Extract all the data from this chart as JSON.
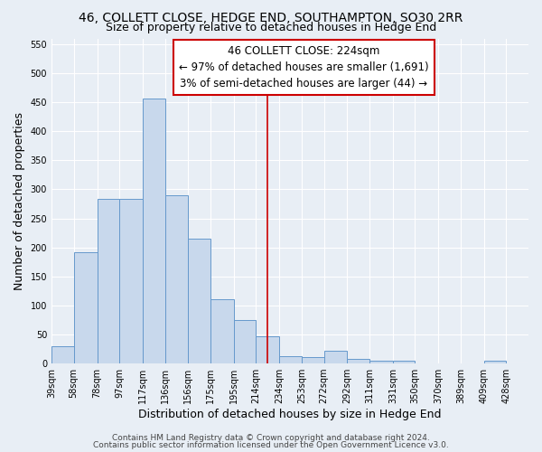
{
  "title1": "46, COLLETT CLOSE, HEDGE END, SOUTHAMPTON, SO30 2RR",
  "title2": "Size of property relative to detached houses in Hedge End",
  "xlabel": "Distribution of detached houses by size in Hedge End",
  "ylabel": "Number of detached properties",
  "background_color": "#e8eef5",
  "bar_color": "#c8d8ec",
  "bar_edge_color": "#6699cc",
  "vline_color": "#cc0000",
  "vline_value": 224,
  "annotation_text": "46 COLLETT CLOSE: 224sqm\n← 97% of detached houses are smaller (1,691)\n3% of semi-detached houses are larger (44) →",
  "annotation_box_color": "#cc0000",
  "footer1": "Contains HM Land Registry data © Crown copyright and database right 2024.",
  "footer2": "Contains public sector information licensed under the Open Government Licence v3.0.",
  "bin_edges": [
    39,
    58,
    78,
    97,
    117,
    136,
    156,
    175,
    195,
    214,
    234,
    253,
    272,
    292,
    311,
    331,
    350,
    370,
    389,
    409,
    428
  ],
  "counts": [
    30,
    192,
    284,
    284,
    457,
    290,
    215,
    110,
    75,
    47,
    13,
    11,
    22,
    8,
    5,
    5,
    0,
    0,
    0,
    5
  ],
  "tick_labels": [
    "39sqm",
    "58sqm",
    "78sqm",
    "97sqm",
    "117sqm",
    "136sqm",
    "156sqm",
    "175sqm",
    "195sqm",
    "214sqm",
    "234sqm",
    "253sqm",
    "272sqm",
    "292sqm",
    "311sqm",
    "331sqm",
    "350sqm",
    "370sqm",
    "389sqm",
    "409sqm",
    "428sqm"
  ],
  "ylim": [
    0,
    560
  ],
  "yticks": [
    0,
    50,
    100,
    150,
    200,
    250,
    300,
    350,
    400,
    450,
    500,
    550
  ],
  "grid_color": "#ffffff",
  "title1_fontsize": 10,
  "title2_fontsize": 9,
  "tick_label_fontsize": 7,
  "axis_label_fontsize": 9,
  "footer_fontsize": 6.5,
  "annotation_fontsize": 8.5
}
